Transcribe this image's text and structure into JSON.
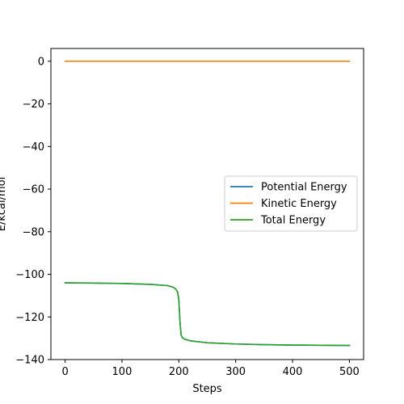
{
  "chart_data": {
    "type": "line",
    "title": "",
    "xlabel": "Steps",
    "ylabel": "E/kcal/mol",
    "xlim": [
      -25,
      525
    ],
    "ylim": [
      -140,
      6
    ],
    "xticks": [
      0,
      100,
      200,
      300,
      400,
      500
    ],
    "yticks": [
      0,
      -20,
      -40,
      -60,
      -80,
      -100,
      -120,
      -140
    ],
    "xtick_labels": [
      "0",
      "100",
      "200",
      "300",
      "400",
      "500"
    ],
    "ytick_labels": [
      "0",
      "−20",
      "−40",
      "−60",
      "−80",
      "−100",
      "−120",
      "−140"
    ],
    "grid": false,
    "legend_position": "center-right",
    "x": [
      0,
      50,
      100,
      150,
      180,
      190,
      195,
      198,
      200,
      202,
      204,
      206,
      210,
      220,
      250,
      300,
      350,
      400,
      450,
      500
    ],
    "series": [
      {
        "name": "Potential Energy",
        "color": "#1f77b4",
        "values": [
          -104.0,
          -104.1,
          -104.3,
          -104.7,
          -105.3,
          -106.0,
          -107.0,
          -108.5,
          -112.0,
          -122.0,
          -128.5,
          -129.7,
          -130.4,
          -131.2,
          -132.1,
          -132.7,
          -133.0,
          -133.2,
          -133.3,
          -133.4
        ]
      },
      {
        "name": "Kinetic Energy",
        "color": "#ff7f0e",
        "values": [
          0,
          0,
          0,
          0,
          0,
          0,
          0,
          0,
          0,
          0,
          0,
          0,
          0,
          0,
          0,
          0,
          0,
          0,
          0,
          0
        ]
      },
      {
        "name": "Total Energy",
        "color": "#2ca02c",
        "values": [
          -104.0,
          -104.1,
          -104.3,
          -104.7,
          -105.3,
          -106.0,
          -107.0,
          -108.5,
          -112.0,
          -122.0,
          -128.5,
          -129.7,
          -130.4,
          -131.2,
          -132.1,
          -132.7,
          -133.0,
          -133.2,
          -133.3,
          -133.4
        ]
      }
    ]
  }
}
